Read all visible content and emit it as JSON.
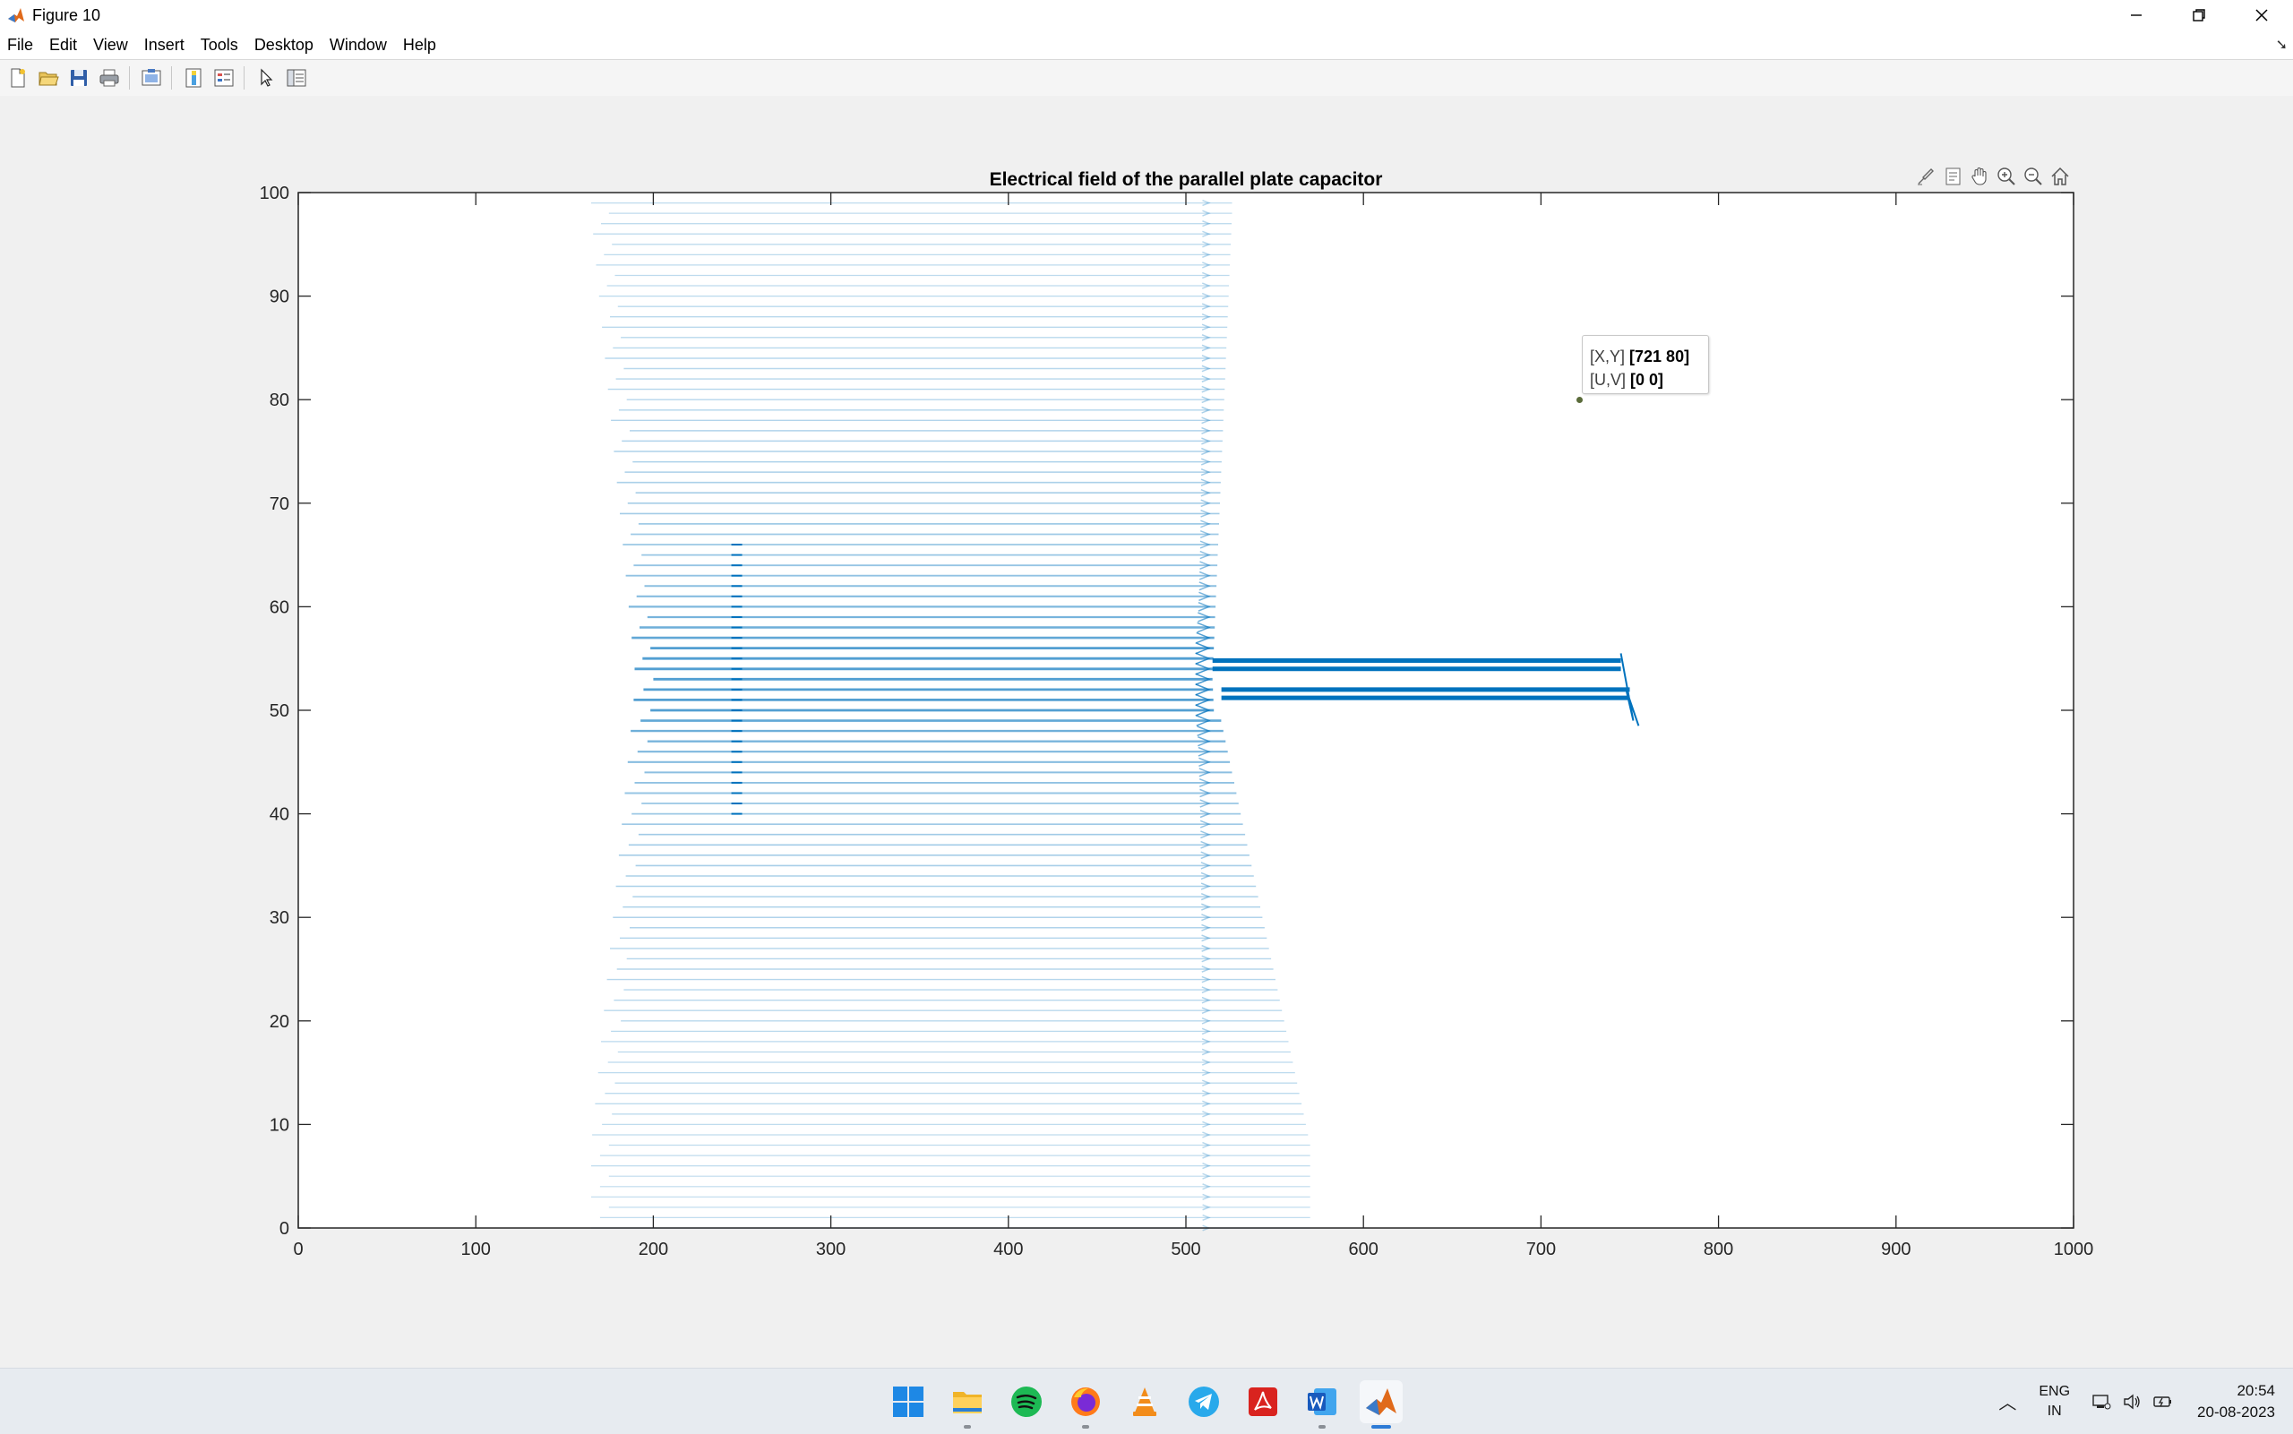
{
  "window": {
    "title": "Figure 10",
    "icon": "matlab-icon",
    "controls": [
      "minimize-icon",
      "restore-icon",
      "close-icon"
    ]
  },
  "menu": {
    "items": [
      "File",
      "Edit",
      "View",
      "Insert",
      "Tools",
      "Desktop",
      "Window",
      "Help"
    ]
  },
  "toolbar": {
    "buttons": [
      "new-figure-icon",
      "open-file-icon",
      "save-icon",
      "print-icon",
      "link-plot-icon",
      "colorbar-icon",
      "legend-icon",
      "edit-plot-arrow-icon",
      "property-inspector-icon"
    ]
  },
  "axes_toolbar": {
    "buttons": [
      "brush-icon",
      "datatip-icon",
      "pan-icon",
      "zoom-in-icon",
      "zoom-out-icon",
      "home-icon"
    ]
  },
  "datatip": {
    "xy_label": "[X,Y]",
    "xy_value": "[721 80]",
    "uv_label": "[U,V]",
    "uv_value": "[0 0]"
  },
  "chart_data": {
    "type": "quiver",
    "title": "Electrical field of the parallel plate capacitor",
    "xlabel": "",
    "ylabel": "",
    "xlim": [
      0,
      1000
    ],
    "ylim": [
      0,
      100
    ],
    "xticks": [
      "0",
      "100",
      "200",
      "300",
      "400",
      "500",
      "600",
      "700",
      "800",
      "900",
      "1000"
    ],
    "yticks": [
      "0",
      "10",
      "20",
      "30",
      "40",
      "50",
      "60",
      "70",
      "80",
      "90",
      "100"
    ],
    "grid": false,
    "color": "#0072BD",
    "field_region": {
      "x_start": 200,
      "x_end": 520,
      "y_start": 0,
      "y_end": 99,
      "rows": 100
    },
    "plates": [
      {
        "x": [
          515,
          745
        ],
        "y": 54.8
      },
      {
        "x": [
          515,
          745
        ],
        "y": 54.0
      },
      {
        "x": [
          520,
          750
        ],
        "y": 52.0
      },
      {
        "x": [
          520,
          750
        ],
        "y": 51.2
      }
    ]
  },
  "taskbar": {
    "apps": [
      "windows-start-icon",
      "file-explorer-icon",
      "spotify-icon",
      "firefox-icon",
      "vlc-icon",
      "telegram-icon",
      "acrobat-icon",
      "word-icon",
      "matlab-icon"
    ],
    "active_app": "matlab-icon",
    "tray": {
      "lang_line1": "ENG",
      "lang_line2": "IN",
      "time": "20:54",
      "date": "20-08-2023"
    }
  },
  "colors": {
    "accent": "#0072BD",
    "figure_bg": "#f0f0f0",
    "taskbar_bg": "#e7ebf0"
  }
}
